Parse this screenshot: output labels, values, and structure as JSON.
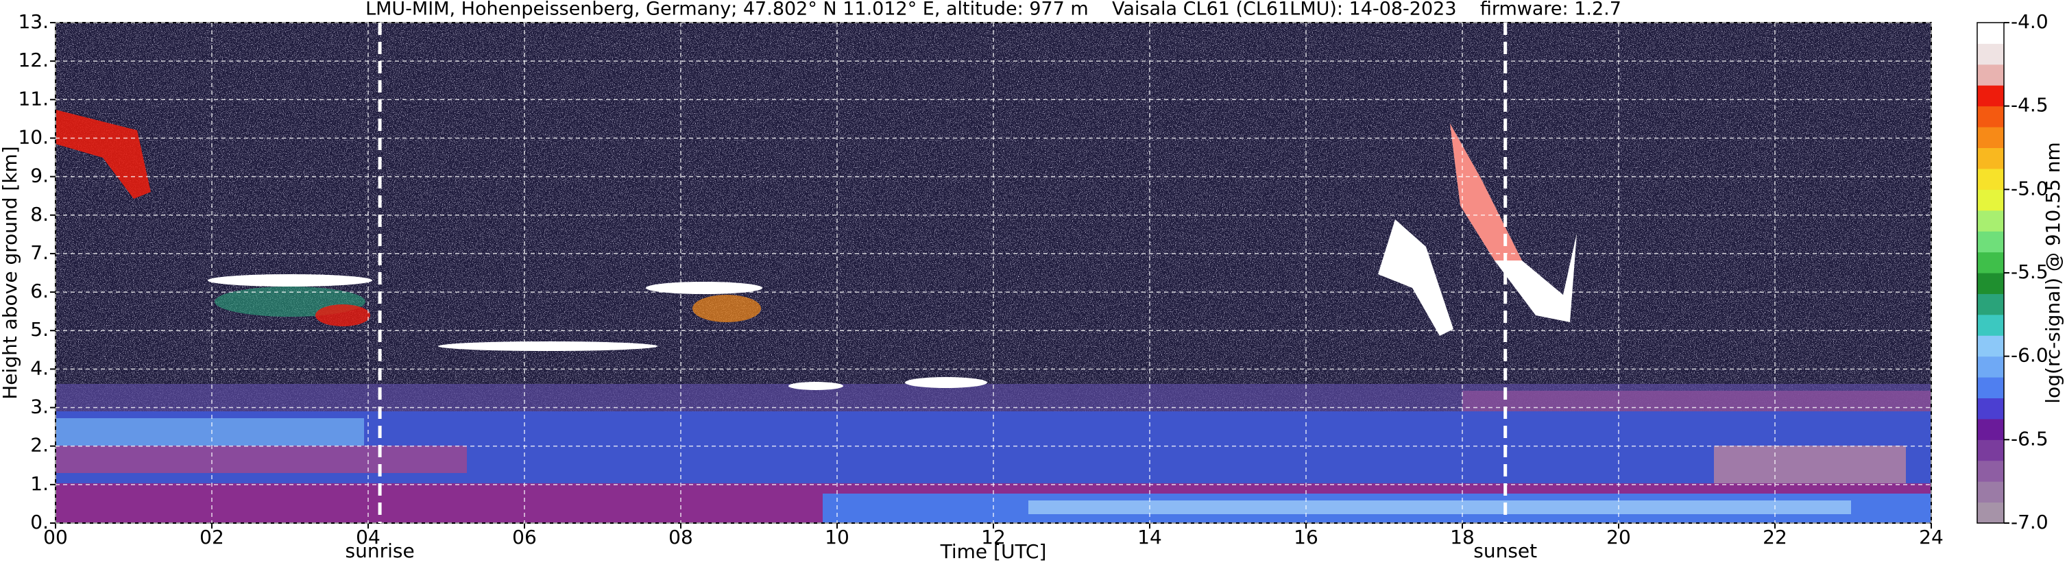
{
  "chart_data": {
    "type": "heatmap",
    "title": "LMU-MIM, Hohenpeissenberg, Germany; 47.802° N 11.012° E, altitude: 977 m    Vaisala CL61 (CL61LMU): 14-08-2023    firmware: 1.2.7",
    "xlabel": "Time [UTC]",
    "ylabel": "Height above ground [km]",
    "xlim": [
      0,
      24
    ],
    "xticks": [
      {
        "value": 0,
        "label": "00"
      },
      {
        "value": 2,
        "label": "02"
      },
      {
        "value": 4,
        "label": "04"
      },
      {
        "value": 6,
        "label": "06"
      },
      {
        "value": 8,
        "label": "08"
      },
      10,
      12,
      14,
      16,
      18,
      20,
      22,
      24
    ],
    "ylim": [
      0,
      13
    ],
    "yticks": [
      {
        "value": 0,
        "label": "0."
      },
      {
        "value": 1,
        "label": "1."
      },
      {
        "value": 2,
        "label": "2."
      },
      {
        "value": 3,
        "label": "3."
      },
      {
        "value": 4,
        "label": "4."
      },
      {
        "value": 5,
        "label": "5."
      },
      {
        "value": 6,
        "label": "6."
      },
      {
        "value": 7,
        "label": "7."
      },
      {
        "value": 8,
        "label": "8."
      },
      {
        "value": 9,
        "label": "9."
      },
      {
        "value": 10,
        "label": "10."
      },
      {
        "value": 11,
        "label": "11."
      },
      {
        "value": 12,
        "label": "12."
      },
      {
        "value": 13,
        "label": "13."
      }
    ],
    "grid": true,
    "annotations": [
      {
        "text": "sunrise",
        "x": 4.15
      },
      {
        "text": "sunset",
        "x": 18.55
      }
    ],
    "colorbar": {
      "label": "log(rc-signal) @ 910.55 nm",
      "lim": [
        -7,
        -4
      ],
      "ticks": [
        {
          "value": -7,
          "label": "-7.0"
        },
        -6.5,
        {
          "value": -6,
          "label": "-6.0"
        },
        -5.5,
        {
          "value": -5,
          "label": "-5.0"
        },
        -4.5,
        {
          "value": -4,
          "label": "-4.0"
        }
      ],
      "colors": [
        "#a693a8",
        "#9b7ba6",
        "#8e5ea3",
        "#7a3c9d",
        "#6a1b9a",
        "#4b3fd1",
        "#4f7ff0",
        "#6fa9f5",
        "#8cc8f8",
        "#3cc8c0",
        "#2aa37a",
        "#1f8f2f",
        "#3fbf4a",
        "#6fdf7a",
        "#a8ef70",
        "#e6f53c",
        "#f7e22a",
        "#f9b81f",
        "#f78a17",
        "#f45a10",
        "#ee1c0c",
        "#e8b3b0",
        "#efe3e3",
        "#ffffff"
      ]
    }
  }
}
